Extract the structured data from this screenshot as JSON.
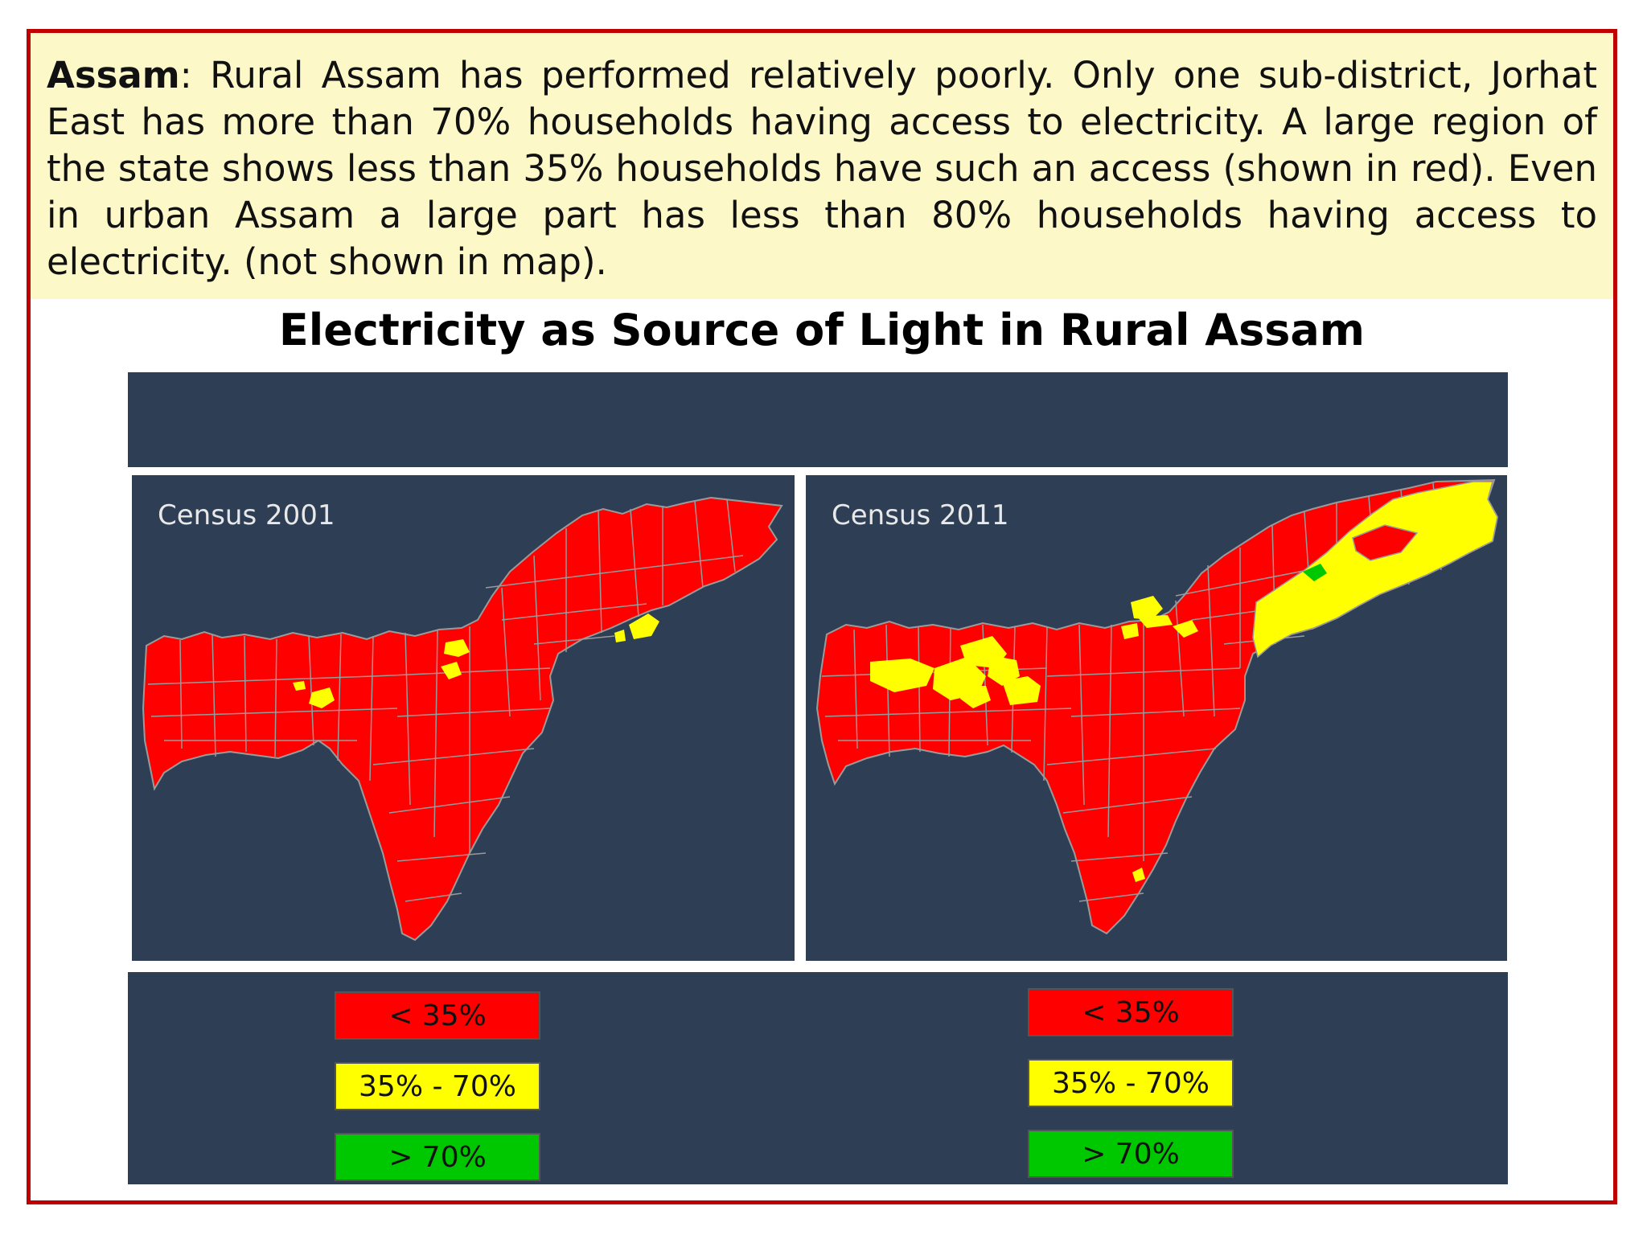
{
  "intro": {
    "lead": "Assam",
    "text": ": Rural Assam has performed relatively poorly. Only one sub-district, Jorhat East has more than 70% households having access to electricity. A large region of the state shows less than 35% households have such an access (shown in red). Even in urban Assam a large part has less than 80% households having access to electricity. (not shown in map)."
  },
  "title": "Electricity as Source of Light in Rural Assam",
  "maps": [
    {
      "label": "Census 2001"
    },
    {
      "label": "Census 2011"
    }
  ],
  "legend": {
    "left": [
      {
        "label": "< 35%",
        "color": "#ff0000"
      },
      {
        "label": "35% - 70%",
        "color": "#ffff00"
      },
      {
        "label": "> 70%",
        "color": "#00c800"
      }
    ],
    "right": [
      {
        "label": "< 35%",
        "color": "#ff0000"
      },
      {
        "label": "35% - 70%",
        "color": "#ffff00"
      },
      {
        "label": "> 70%",
        "color": "#00c800"
      }
    ]
  },
  "colors": {
    "background": "#2d3e55",
    "border": "#c00000",
    "intro_bg": "#fdf8c8",
    "low": "#ff0000",
    "mid": "#ffff00",
    "high": "#00c800"
  }
}
